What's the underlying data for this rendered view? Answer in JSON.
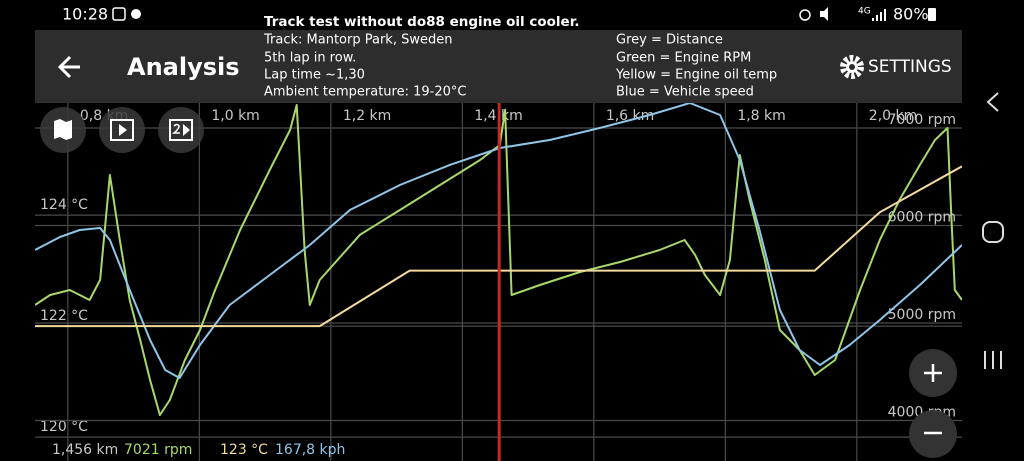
{
  "status_bar": {
    "time": "10:28",
    "network": "4G",
    "battery": "80%"
  },
  "toolbar": {
    "title": "Analysis",
    "settings": "SETTINGS"
  },
  "annotation": {
    "title": "Track test without do88 engine oil cooler.",
    "lines": [
      "Track: Mantorp Park, Sweden",
      "5th lap in row.",
      "Lap time ~1,30",
      "Ambient temperature: 19-20°C"
    ],
    "legend": [
      "Grey = Distance",
      "Green = Engine RPM",
      "Yellow = Engine oil temp",
      "Blue = Vehicle speed"
    ]
  },
  "chart_data": {
    "type": "line",
    "xlim": [
      0.75,
      2.16
    ],
    "xticks": [
      {
        "value": 0.8,
        "label": "0,8 km"
      },
      {
        "value": 1.0,
        "label": "1,0 km"
      },
      {
        "value": 1.2,
        "label": "1,2 km"
      },
      {
        "value": 1.4,
        "label": "1,4 km"
      },
      {
        "value": 1.6,
        "label": "1,6 km"
      },
      {
        "value": 1.8,
        "label": "1,8 km"
      },
      {
        "value": 2.0,
        "label": "2,0 km"
      }
    ],
    "ylim": [
      119.57,
      126.02
    ],
    "yticks": [
      {
        "value": 120,
        "label": "120 °C"
      },
      {
        "value": 122,
        "label": "122 °C"
      },
      {
        "value": 124,
        "label": "124 °C"
      }
    ],
    "y2lim": [
      3585,
      7256
    ],
    "y2ticks": [
      {
        "value": 4000,
        "label": "4000 rpm"
      },
      {
        "value": 5000,
        "label": "5000 rpm"
      },
      {
        "value": 6000,
        "label": "6000 rpm"
      },
      {
        "value": 7000,
        "label": "7000 rpm"
      }
    ],
    "grid": true,
    "series": [
      {
        "color": "#a8d86c",
        "axis": "y2",
        "x": [
          0.75,
          0.773,
          0.803,
          0.833,
          0.849,
          0.864,
          0.879,
          0.894,
          0.91,
          0.925,
          0.94,
          0.955,
          0.978,
          1.001,
          1.024,
          1.062,
          1.107,
          1.138,
          1.148,
          1.16,
          1.168,
          1.183,
          1.244,
          1.305,
          1.366,
          1.427,
          1.457,
          1.465,
          1.475,
          1.518,
          1.579,
          1.64,
          1.7,
          1.738,
          1.754,
          1.769,
          1.792,
          1.807,
          1.822,
          1.837,
          1.86,
          1.883,
          1.913,
          1.936,
          1.967,
          2.005,
          2.035,
          2.065,
          2.096,
          2.119,
          2.138,
          2.144,
          2.149,
          2.16
        ],
        "values": [
          5185,
          5287,
          5338,
          5236,
          5441,
          6518,
          5851,
          5236,
          4826,
          4415,
          4057,
          4210,
          4621,
          4928,
          5338,
          5954,
          6569,
          6979,
          7236,
          5749,
          5185,
          5441,
          5903,
          6159,
          6415,
          6672,
          6826,
          7185,
          5287,
          5390,
          5523,
          5626,
          5749,
          5851,
          5698,
          5492,
          5287,
          5646,
          6723,
          6262,
          5646,
          4928,
          4723,
          4467,
          4621,
          5338,
          5851,
          6262,
          6621,
          6877,
          7000,
          6056,
          5338,
          5236
        ]
      },
      {
        "color": "#8ec5e8",
        "axis": "y2",
        "x": [
          0.75,
          0.788,
          0.818,
          0.849,
          0.864,
          0.894,
          0.925,
          0.948,
          0.97,
          1.001,
          1.046,
          1.107,
          1.168,
          1.229,
          1.305,
          1.381,
          1.457,
          1.533,
          1.609,
          1.685,
          1.746,
          1.792,
          1.822,
          1.852,
          1.883,
          1.913,
          1.944,
          1.989,
          2.035,
          2.096,
          2.16
        ],
        "values": [
          5749,
          5882,
          5954,
          5974,
          5851,
          5338,
          4826,
          4518,
          4436,
          4774,
          5185,
          5492,
          5800,
          6159,
          6415,
          6621,
          6795,
          6877,
          7000,
          7133,
          7256,
          7133,
          6672,
          5954,
          5133,
          4723,
          4569,
          4774,
          5031,
          5390,
          5800
        ]
      },
      {
        "color": "#f3dba0",
        "axis": "y",
        "x": [
          0.75,
          1.183,
          1.32,
          1.936,
          2.035,
          2.16
        ],
        "values": [
          122.0,
          122.0,
          123.0,
          123.0,
          124.05,
          124.88
        ]
      }
    ],
    "cursor": {
      "value": 1.456,
      "label": "1,456 km",
      "color": "#c62828"
    },
    "readout": [
      {
        "text": "7021 rpm",
        "color": "#a8d86c"
      },
      {
        "text": "123 °C",
        "color": "#f3dba0"
      },
      {
        "text": "167,8 kph",
        "color": "#8ec5e8"
      }
    ]
  }
}
